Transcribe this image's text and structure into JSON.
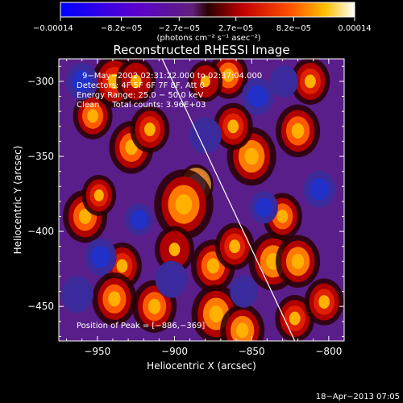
{
  "chart_data": {
    "type": "heatmap",
    "title": "Reconstructed RHESSI Image",
    "xlabel": "Heliocentric X (arcsec)",
    "ylabel": "Heliocentric Y (arcsec)",
    "x_ticks": [
      -950,
      -900,
      -850,
      -800
    ],
    "x_tick_labels": [
      "−950",
      "−900",
      "−850",
      "−800"
    ],
    "y_ticks": [
      -300,
      -350,
      -400,
      -450
    ],
    "y_tick_labels": [
      "−300",
      "−350",
      "−400",
      "−450"
    ],
    "xlim": [
      -975,
      -790
    ],
    "ylim": [
      -473,
      -285
    ],
    "colorbar": {
      "ticks": [
        -0.00014,
        -8.2e-05,
        -2.7e-05,
        2.7e-05,
        8.2e-05,
        0.00014
      ],
      "tick_labels": [
        "−0.00014",
        "−8.2e−05",
        "−2.7e−05",
        "2.7e−05",
        "8.2e−05",
        "0.00014"
      ],
      "unit_label": "(photons cm⁻² s⁻¹ asec⁻²)",
      "range": [
        -0.00014,
        0.00014
      ]
    },
    "info_lines": [
      "9−May−2002 02:31:22.000 to 02:37:04.000",
      "Detectors: 4F 5F 6F 7F 8F, Att 0",
      "Energy Range: 25.0 − 50.0 keV",
      "Clean     Total counts: 3.96E+03"
    ],
    "peak_label": "Position of Peak = [−886,−369]",
    "peak": {
      "x": -886,
      "y": -369
    },
    "limb_line": {
      "x1": -908,
      "y1": -285,
      "x2": -822,
      "y2": -473
    },
    "sources": [
      {
        "x": -886,
        "y": -369,
        "v": 1.0,
        "r": 7
      },
      {
        "x": -894,
        "y": -382,
        "v": 0.55,
        "r": 12
      },
      {
        "x": -928,
        "y": -344,
        "v": 0.5,
        "r": 9
      },
      {
        "x": -916,
        "y": -332,
        "v": 0.4,
        "r": 8
      },
      {
        "x": -953,
        "y": -323,
        "v": 0.45,
        "r": 8
      },
      {
        "x": -939,
        "y": -300,
        "v": 0.4,
        "r": 9
      },
      {
        "x": -925,
        "y": -300,
        "v": 0.3,
        "r": 8
      },
      {
        "x": -958,
        "y": -390,
        "v": 0.45,
        "r": 9
      },
      {
        "x": -949,
        "y": -376,
        "v": 0.35,
        "r": 7
      },
      {
        "x": -934,
        "y": -423,
        "v": 0.4,
        "r": 8
      },
      {
        "x": -939,
        "y": -445,
        "v": 0.5,
        "r": 9
      },
      {
        "x": -913,
        "y": -450,
        "v": 0.45,
        "r": 9
      },
      {
        "x": -875,
        "y": -423,
        "v": 0.5,
        "r": 9
      },
      {
        "x": -873,
        "y": -455,
        "v": 0.6,
        "r": 10
      },
      {
        "x": -856,
        "y": -466,
        "v": 0.6,
        "r": 9
      },
      {
        "x": -861,
        "y": -410,
        "v": 0.4,
        "r": 8
      },
      {
        "x": -836,
        "y": -420,
        "v": 0.6,
        "r": 10
      },
      {
        "x": -820,
        "y": -420,
        "v": 0.55,
        "r": 9
      },
      {
        "x": -830,
        "y": -390,
        "v": 0.45,
        "r": 8
      },
      {
        "x": -850,
        "y": -350,
        "v": 0.55,
        "r": 10
      },
      {
        "x": -862,
        "y": -330,
        "v": 0.35,
        "r": 8
      },
      {
        "x": -865,
        "y": -296,
        "v": 0.5,
        "r": 8
      },
      {
        "x": -820,
        "y": -333,
        "v": 0.5,
        "r": 9
      },
      {
        "x": -812,
        "y": -300,
        "v": 0.35,
        "r": 8
      },
      {
        "x": -880,
        "y": -300,
        "v": 0.3,
        "r": 7
      },
      {
        "x": -900,
        "y": -412,
        "v": 0.3,
        "r": 8
      },
      {
        "x": -822,
        "y": -458,
        "v": 0.4,
        "r": 8
      },
      {
        "x": -803,
        "y": -447,
        "v": 0.35,
        "r": 8
      },
      {
        "x": -960,
        "y": -300,
        "v": -0.55,
        "r": 8
      },
      {
        "x": -923,
        "y": -392,
        "v": -0.5,
        "r": 7
      },
      {
        "x": -948,
        "y": -417,
        "v": -0.55,
        "r": 8
      },
      {
        "x": -963,
        "y": -442,
        "v": -0.45,
        "r": 8
      },
      {
        "x": -846,
        "y": -310,
        "v": -0.6,
        "r": 8
      },
      {
        "x": -829,
        "y": -300,
        "v": -0.45,
        "r": 7
      },
      {
        "x": -842,
        "y": -384,
        "v": -0.5,
        "r": 7
      },
      {
        "x": -806,
        "y": -372,
        "v": -0.55,
        "r": 8
      },
      {
        "x": -880,
        "y": -336,
        "v": -0.35,
        "r": 8
      },
      {
        "x": -902,
        "y": -432,
        "v": -0.35,
        "r": 8
      },
      {
        "x": -855,
        "y": -440,
        "v": -0.3,
        "r": 7
      }
    ]
  },
  "footer": {
    "timestamp": "18−Apr−2013 07:05"
  }
}
